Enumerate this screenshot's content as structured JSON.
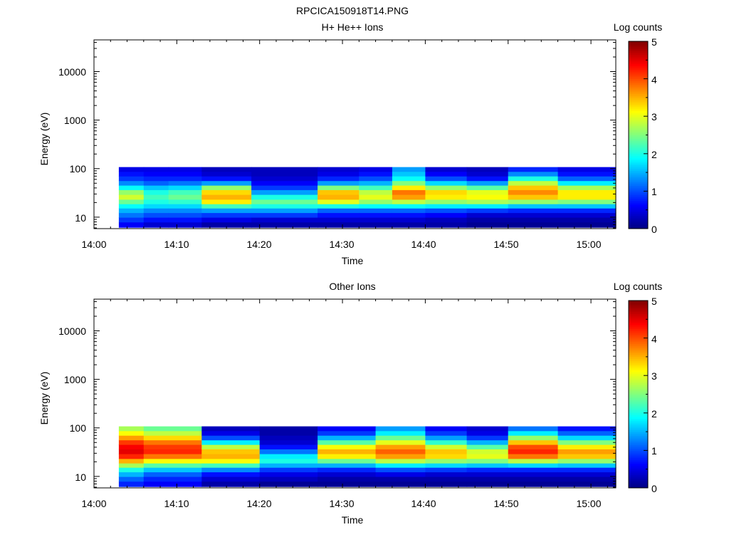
{
  "figure_title": "RPCICA150918T14.PNG",
  "chart_data": [
    {
      "type": "heatmap",
      "title": "H+ He++ Ions",
      "xlabel": "Time",
      "ylabel": "Energy (eV)",
      "y_scale": "log",
      "xlim": [
        "14:00",
        "15:03"
      ],
      "ylim": [
        5.8,
        45000
      ],
      "x_ticks": [
        "14:00",
        "14:10",
        "14:20",
        "14:30",
        "14:40",
        "14:50",
        "15:00"
      ],
      "y_ticks": [
        10,
        100,
        1000,
        10000
      ],
      "y_tick_labels": [
        "10",
        "100",
        "1000",
        "10000"
      ],
      "colorbar": {
        "label": "Log counts",
        "range": [
          0,
          5
        ],
        "ticks": [
          "0",
          "1",
          "2",
          "3",
          "4",
          "5"
        ],
        "colormap": "jet"
      },
      "energy_bins_eV": [
        7,
        9,
        11,
        14,
        17,
        21,
        26,
        33,
        41,
        51,
        63,
        79,
        97
      ],
      "rows": [
        {
          "from": "14:03",
          "to": "14:06",
          "levels": [
            0.6,
            0.9,
            1.2,
            1.5,
            1.9,
            2.4,
            2.9,
            2.6,
            1.9,
            1.3,
            0.9,
            0.7,
            0.5
          ]
        },
        {
          "from": "14:06",
          "to": "14:09",
          "levels": [
            0.4,
            0.7,
            1.0,
            1.3,
            1.7,
            2.0,
            2.2,
            2.0,
            1.6,
            1.1,
            0.8,
            0.6,
            0.5
          ]
        },
        {
          "from": "14:09",
          "to": "14:13",
          "levels": [
            0.4,
            0.7,
            1.0,
            1.3,
            1.7,
            2.1,
            2.4,
            2.2,
            1.7,
            1.2,
            0.8,
            0.6,
            0.5
          ]
        },
        {
          "from": "14:13",
          "to": "14:19",
          "levels": [
            0.2,
            0.5,
            0.9,
            1.4,
            2.2,
            3.2,
            3.5,
            3.3,
            2.6,
            1.4,
            0.7,
            0.4,
            0.3
          ]
        },
        {
          "from": "14:19",
          "to": "14:27",
          "levels": [
            0.2,
            0.4,
            0.9,
            1.4,
            2.0,
            2.4,
            2.0,
            1.4,
            0.9,
            0.6,
            0.4,
            0.3,
            0.3
          ]
        },
        {
          "from": "14:27",
          "to": "14:32",
          "levels": [
            0.2,
            0.4,
            0.7,
            1.1,
            2.0,
            3.0,
            3.5,
            3.4,
            2.5,
            1.4,
            0.8,
            0.5,
            0.4
          ]
        },
        {
          "from": "14:32",
          "to": "14:36",
          "levels": [
            0.2,
            0.4,
            0.7,
            1.1,
            1.9,
            2.6,
            3.0,
            2.8,
            2.2,
            1.5,
            1.0,
            0.7,
            0.5
          ]
        },
        {
          "from": "14:36",
          "to": "14:40",
          "levels": [
            0.2,
            0.4,
            0.7,
            1.1,
            1.9,
            2.8,
            3.6,
            3.8,
            3.2,
            2.5,
            1.9,
            1.6,
            1.4
          ]
        },
        {
          "from": "14:40",
          "to": "14:45",
          "levels": [
            0.2,
            0.3,
            0.6,
            1.0,
            1.8,
            2.6,
            3.2,
            3.3,
            2.6,
            1.7,
            1.0,
            0.6,
            0.4
          ]
        },
        {
          "from": "14:45",
          "to": "14:50",
          "levels": [
            0.1,
            0.2,
            0.4,
            0.9,
            1.8,
            2.7,
            3.1,
            3.0,
            2.3,
            1.4,
            0.7,
            0.4,
            0.3
          ]
        },
        {
          "from": "14:50",
          "to": "14:56",
          "levels": [
            0.1,
            0.2,
            0.4,
            0.8,
            1.6,
            2.6,
            3.4,
            3.7,
            3.4,
            2.8,
            2.0,
            1.3,
            0.8
          ]
        },
        {
          "from": "14:56",
          "to": "15:03",
          "levels": [
            0.1,
            0.2,
            0.4,
            0.8,
            1.6,
            2.5,
            3.2,
            3.2,
            2.7,
            1.8,
            1.1,
            0.7,
            0.5
          ]
        }
      ]
    },
    {
      "type": "heatmap",
      "title": "Other Ions",
      "xlabel": "Time",
      "ylabel": "Energy (eV)",
      "y_scale": "log",
      "xlim": [
        "14:00",
        "15:03"
      ],
      "ylim": [
        5.8,
        45000
      ],
      "x_ticks": [
        "14:00",
        "14:10",
        "14:20",
        "14:30",
        "14:40",
        "14:50",
        "15:00"
      ],
      "y_ticks": [
        10,
        100,
        1000,
        10000
      ],
      "y_tick_labels": [
        "10",
        "100",
        "1000",
        "10000"
      ],
      "colorbar": {
        "label": "Log counts",
        "range": [
          0,
          5
        ],
        "ticks": [
          "0",
          "1",
          "2",
          "3",
          "4",
          "5"
        ],
        "colormap": "jet"
      },
      "energy_bins_eV": [
        7,
        9,
        11,
        14,
        17,
        21,
        26,
        33,
        41,
        51,
        63,
        79,
        97
      ],
      "rows": [
        {
          "from": "14:03",
          "to": "14:06",
          "levels": [
            0.8,
            1.1,
            1.5,
            2.0,
            2.7,
            3.5,
            4.2,
            4.5,
            4.4,
            4.1,
            3.6,
            3.1,
            2.7
          ]
        },
        {
          "from": "14:06",
          "to": "14:13",
          "levels": [
            0.6,
            0.8,
            1.1,
            1.6,
            2.3,
            3.1,
            3.8,
            4.2,
            4.1,
            3.8,
            3.3,
            2.8,
            2.4
          ]
        },
        {
          "from": "14:13",
          "to": "14:20",
          "levels": [
            0.2,
            0.4,
            0.7,
            1.3,
            2.2,
            3.1,
            3.5,
            3.4,
            2.8,
            1.8,
            1.0,
            0.5,
            0.3
          ]
        },
        {
          "from": "14:20",
          "to": "14:27",
          "levels": [
            0.1,
            0.3,
            0.5,
            0.9,
            1.5,
            2.0,
            1.8,
            1.2,
            0.7,
            0.4,
            0.3,
            0.2,
            0.2
          ]
        },
        {
          "from": "14:27",
          "to": "14:34",
          "levels": [
            0.1,
            0.2,
            0.4,
            0.8,
            1.5,
            2.4,
            3.2,
            3.5,
            3.1,
            2.3,
            1.5,
            0.9,
            0.6
          ]
        },
        {
          "from": "14:34",
          "to": "14:40",
          "levels": [
            0.1,
            0.2,
            0.5,
            1.0,
            1.8,
            2.8,
            3.6,
            3.9,
            3.6,
            3.0,
            2.4,
            1.8,
            1.4
          ]
        },
        {
          "from": "14:40",
          "to": "14:45",
          "levels": [
            0.1,
            0.2,
            0.4,
            0.9,
            1.7,
            2.6,
            3.3,
            3.4,
            2.9,
            2.1,
            1.4,
            0.9,
            0.6
          ]
        },
        {
          "from": "14:45",
          "to": "14:50",
          "levels": [
            0.1,
            0.2,
            0.4,
            0.8,
            1.6,
            2.5,
            3.0,
            2.9,
            2.3,
            1.5,
            0.9,
            0.5,
            0.4
          ]
        },
        {
          "from": "14:50",
          "to": "14:56",
          "levels": [
            0.1,
            0.2,
            0.4,
            0.8,
            1.7,
            2.8,
            3.8,
            4.2,
            4.0,
            3.4,
            2.6,
            1.8,
            1.2
          ]
        },
        {
          "from": "14:56",
          "to": "15:03",
          "levels": [
            0.1,
            0.2,
            0.4,
            0.8,
            1.6,
            2.6,
            3.4,
            3.6,
            3.2,
            2.5,
            1.7,
            1.1,
            0.7
          ]
        }
      ]
    }
  ]
}
